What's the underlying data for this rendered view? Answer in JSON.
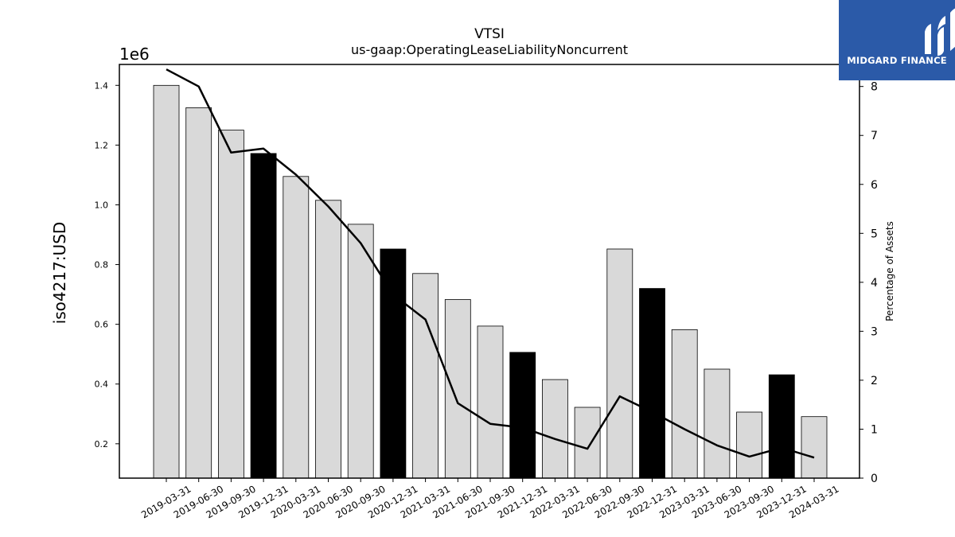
{
  "chart_data": {
    "type": "bar",
    "title": "VTSI",
    "subtitle": "us-gaap:OperatingLeaseLiabilityNoncurrent",
    "ylabel": "iso4217:USD",
    "y2label": "Percentage of Assets",
    "y_offset_text": "1e6",
    "ylim": [
      0.085,
      1.47
    ],
    "y_unit_multiplier": 1000000,
    "y_ticks": [
      "0.2",
      "0.4",
      "0.6",
      "0.8",
      "1.0",
      "1.2",
      "1.4"
    ],
    "y2lim": [
      0,
      8.45
    ],
    "y2_ticks": [
      "0",
      "1",
      "2",
      "3",
      "4",
      "5",
      "6",
      "7",
      "8"
    ],
    "categories": [
      "2019-03-31",
      "2019-06-30",
      "2019-09-30",
      "2019-12-31",
      "2020-03-31",
      "2020-06-30",
      "2020-09-30",
      "2020-12-31",
      "2021-03-31",
      "2021-06-30",
      "2021-09-30",
      "2021-12-31",
      "2022-03-31",
      "2022-06-30",
      "2022-09-30",
      "2022-12-31",
      "2023-03-31",
      "2023-06-30",
      "2023-09-30",
      "2023-12-31",
      "2024-03-31"
    ],
    "series": [
      {
        "type": "bar",
        "values": [
          1.4,
          1.325,
          1.25,
          1.172,
          1.095,
          1.015,
          0.935,
          0.852,
          0.77,
          0.683,
          0.594,
          0.506,
          0.415,
          0.322,
          0.852,
          0.72,
          0.582,
          0.45,
          0.306,
          0.431,
          0.291
        ],
        "highlight": [
          false,
          false,
          false,
          true,
          false,
          false,
          false,
          true,
          false,
          false,
          false,
          true,
          false,
          false,
          false,
          true,
          false,
          false,
          false,
          true,
          false
        ],
        "color": "#d9d9d9",
        "highlight_color": "#000000"
      },
      {
        "type": "line",
        "axis": "right",
        "values": [
          8.35,
          8.0,
          6.65,
          6.73,
          6.2,
          5.55,
          4.8,
          3.75,
          3.24,
          1.53,
          1.11,
          1.03,
          0.8,
          0.6,
          1.67,
          1.35,
          1.0,
          0.67,
          0.44,
          0.62,
          0.42
        ],
        "color": "#000000"
      }
    ]
  },
  "logo": {
    "text": "MIDGARD FINANCE",
    "color": "#2b5aa8"
  }
}
